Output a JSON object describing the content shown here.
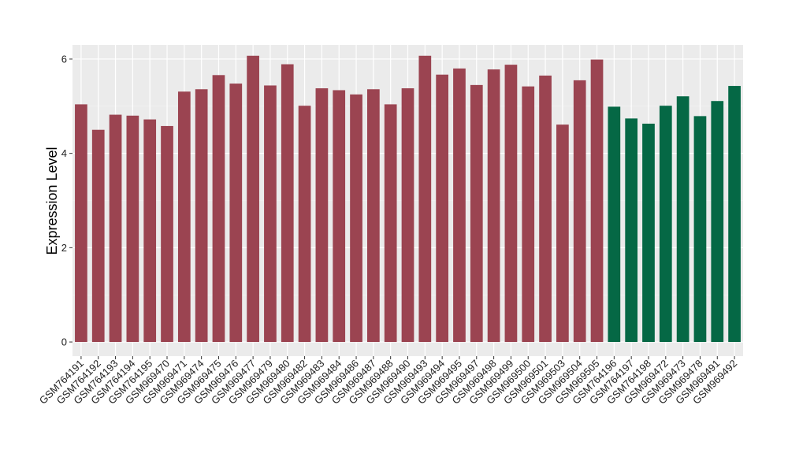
{
  "chart_data": {
    "type": "bar",
    "xlabel": "",
    "ylabel": "Expression Level",
    "ylim": [
      -0.3,
      6.3
    ],
    "yticks": [
      0,
      2,
      4,
      6
    ],
    "grid": true,
    "legend": "none",
    "background_color": "#EBEBEB",
    "group_colors": {
      "group1": "#9B4451",
      "group2": "#056845"
    },
    "categories": [
      "GSM764191",
      "GSM764192",
      "GSM764193",
      "GSM764194",
      "GSM764195",
      "GSM969470",
      "GSM969471",
      "GSM969474",
      "GSM969475",
      "GSM969476",
      "GSM969477",
      "GSM969479",
      "GSM969480",
      "GSM969482",
      "GSM969483",
      "GSM969484",
      "GSM969486",
      "GSM969487",
      "GSM969488",
      "GSM969490",
      "GSM969493",
      "GSM969494",
      "GSM969495",
      "GSM969497",
      "GSM969498",
      "GSM969499",
      "GSM969500",
      "GSM969501",
      "GSM969503",
      "GSM969504",
      "GSM969505",
      "GSM764196",
      "GSM764197",
      "GSM764198",
      "GSM969472",
      "GSM969473",
      "GSM969478",
      "GSM969491",
      "GSM969492"
    ],
    "values": [
      5.04,
      4.5,
      4.82,
      4.8,
      4.72,
      4.58,
      5.31,
      5.36,
      5.66,
      5.48,
      6.07,
      5.44,
      5.89,
      5.01,
      5.38,
      5.34,
      5.25,
      5.36,
      5.04,
      5.38,
      6.07,
      5.67,
      5.8,
      5.45,
      5.78,
      5.88,
      5.42,
      5.65,
      4.61,
      5.55,
      5.99,
      4.99,
      4.74,
      4.63,
      5.01,
      5.21,
      4.79,
      5.11,
      5.43
    ],
    "groups": [
      "group1",
      "group1",
      "group1",
      "group1",
      "group1",
      "group1",
      "group1",
      "group1",
      "group1",
      "group1",
      "group1",
      "group1",
      "group1",
      "group1",
      "group1",
      "group1",
      "group1",
      "group1",
      "group1",
      "group1",
      "group1",
      "group1",
      "group1",
      "group1",
      "group1",
      "group1",
      "group1",
      "group1",
      "group1",
      "group1",
      "group1",
      "group2",
      "group2",
      "group2",
      "group2",
      "group2",
      "group2",
      "group2",
      "group2"
    ]
  }
}
